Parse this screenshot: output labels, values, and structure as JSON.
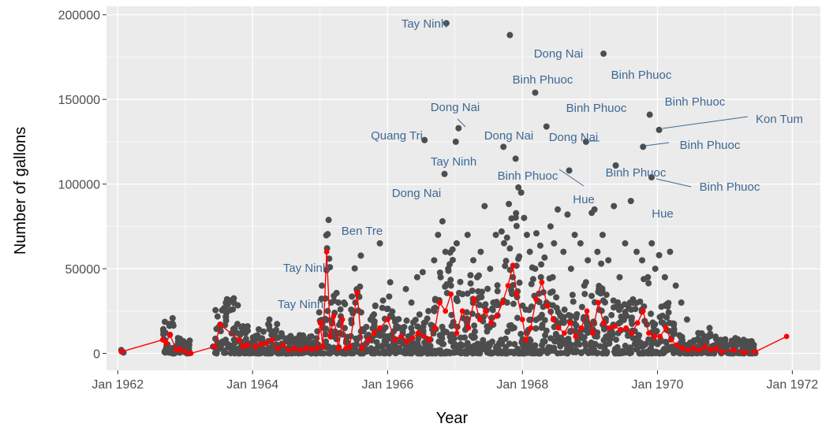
{
  "chart_data": {
    "type": "scatter",
    "title": "",
    "xlabel": "Year",
    "ylabel": "Number of gallons",
    "xlim": [
      "1961-11-01",
      "1972-06-01"
    ],
    "ylim": [
      -10000,
      205000
    ],
    "grid": true,
    "legend": "none",
    "x_ticks": [
      {
        "date": "1962-01-01",
        "label": "Jan 1962"
      },
      {
        "date": "1964-01-01",
        "label": "Jan 1964"
      },
      {
        "date": "1966-01-01",
        "label": "Jan 1966"
      },
      {
        "date": "1968-01-01",
        "label": "Jan 1968"
      },
      {
        "date": "1970-01-01",
        "label": "Jan 1970"
      },
      {
        "date": "1972-01-01",
        "label": "Jan 1972"
      }
    ],
    "y_ticks": [
      {
        "value": 0,
        "label": "0"
      },
      {
        "value": 50000,
        "label": "50000"
      },
      {
        "value": 100000,
        "label": "100000"
      },
      {
        "value": 150000,
        "label": "150000"
      },
      {
        "value": 200000,
        "label": "200000"
      }
    ],
    "colors": {
      "points": "#4d4d4d",
      "line": "#ff0000",
      "labels": "#3e6994",
      "panel": "#ebebeb",
      "grid": "#ffffff"
    },
    "series": [
      {
        "kind": "scatter",
        "points": [
          [
            "1962-01-20",
            2000
          ],
          [
            "1962-02-01",
            500
          ],
          [
            "1962-09-05",
            13000
          ],
          [
            "1962-09-20",
            3000
          ],
          [
            "1962-10-10",
            11000
          ],
          [
            "1962-11-01",
            2000
          ],
          [
            "1962-11-20",
            1000
          ],
          [
            "1963-01-10",
            1000
          ],
          [
            "1963-06-01",
            4000
          ],
          [
            "1963-07-10",
            17000
          ],
          [
            "1963-10-10",
            12000
          ],
          [
            "1963-10-25",
            7000
          ],
          [
            "1963-11-10",
            16000
          ],
          [
            "1963-12-05",
            16000
          ],
          [
            "1963-12-20",
            5000
          ],
          [
            "1964-04-01",
            20000
          ],
          [
            "1964-05-01",
            12000
          ],
          [
            "1964-06-10",
            10000
          ],
          [
            "1964-08-01",
            7000
          ],
          [
            "1964-10-01",
            10000
          ],
          [
            "1964-11-20",
            6000
          ],
          [
            "1964-12-10",
            5000
          ],
          [
            "1965-01-10",
            40000
          ],
          [
            "1965-01-20",
            15000
          ],
          [
            "1965-02-10",
            25000
          ],
          [
            "1965-03-01",
            30000
          ],
          [
            "1965-03-20",
            24000
          ],
          [
            "1965-04-10",
            30000
          ],
          [
            "1965-05-10",
            30000
          ],
          [
            "1965-07-10",
            30000
          ],
          [
            "1965-08-10",
            13000
          ],
          [
            "1965-09-10",
            10000
          ],
          [
            "1965-10-01",
            20000
          ],
          [
            "1965-10-20",
            18000
          ],
          [
            "1965-11-10",
            13000
          ],
          [
            "1965-12-10",
            14000
          ],
          [
            "1965-11-20",
            65000
          ],
          [
            "1966-01-15",
            42000
          ],
          [
            "1966-02-10",
            20000
          ],
          [
            "1966-03-10",
            15000
          ],
          [
            "1966-04-10",
            38000
          ],
          [
            "1966-05-10",
            30000
          ],
          [
            "1966-06-10",
            45000
          ],
          [
            "1966-07-10",
            48000
          ],
          [
            "1966-08-10",
            25000
          ],
          [
            "1966-09-10",
            55000
          ],
          [
            "1966-10-01",
            70000
          ],
          [
            "1966-10-15",
            45000
          ],
          [
            "1966-10-25",
            78000
          ],
          [
            "1966-11-10",
            60000
          ],
          [
            "1966-11-25",
            50000
          ],
          [
            "1966-12-10",
            40000
          ],
          [
            "1967-01-10",
            65000
          ],
          [
            "1967-02-10",
            35000
          ],
          [
            "1967-03-10",
            70000
          ],
          [
            "1967-04-10",
            55000
          ],
          [
            "1967-05-01",
            45000
          ],
          [
            "1967-05-20",
            60000
          ],
          [
            "1967-06-10",
            87000
          ],
          [
            "1967-07-10",
            50000
          ],
          [
            "1967-08-10",
            70000
          ],
          [
            "1967-09-10",
            72000
          ],
          [
            "1967-10-10",
            30000
          ],
          [
            "1967-10-25",
            62000
          ],
          [
            "1967-11-10",
            45000
          ],
          [
            "1967-12-10",
            98000
          ],
          [
            "1967-12-25",
            95000
          ],
          [
            "1968-01-10",
            80000
          ],
          [
            "1968-01-25",
            70000
          ],
          [
            "1968-02-10",
            60000
          ],
          [
            "1968-03-10",
            50000
          ],
          [
            "1968-04-10",
            45000
          ],
          [
            "1968-05-10",
            30000
          ],
          [
            "1968-06-01",
            75000
          ],
          [
            "1968-06-20",
            65000
          ],
          [
            "1968-07-10",
            85000
          ],
          [
            "1968-08-10",
            60000
          ],
          [
            "1968-09-01",
            82000
          ],
          [
            "1968-09-20",
            50000
          ],
          [
            "1968-10-10",
            70000
          ],
          [
            "1968-11-10",
            65000
          ],
          [
            "1968-12-01",
            40000
          ],
          [
            "1968-12-20",
            55000
          ],
          [
            "1969-01-10",
            83000
          ],
          [
            "1969-01-25",
            85000
          ],
          [
            "1969-02-10",
            60000
          ],
          [
            "1969-03-10",
            70000
          ],
          [
            "1969-04-10",
            55000
          ],
          [
            "1969-05-10",
            87000
          ],
          [
            "1969-06-10",
            45000
          ],
          [
            "1969-07-10",
            65000
          ],
          [
            "1969-08-10",
            90000
          ],
          [
            "1969-09-10",
            60000
          ],
          [
            "1969-10-10",
            55000
          ],
          [
            "1969-11-10",
            45000
          ],
          [
            "1969-12-01",
            65000
          ],
          [
            "1969-12-20",
            50000
          ],
          [
            "1970-01-10",
            58000
          ],
          [
            "1970-02-10",
            45000
          ],
          [
            "1970-03-10",
            60000
          ],
          [
            "1970-04-10",
            40000
          ],
          [
            "1970-05-10",
            30000
          ],
          [
            "1970-06-10",
            20000
          ],
          [
            "1970-08-10",
            12000
          ],
          [
            "1970-10-10",
            15000
          ],
          [
            "1970-12-10",
            8000
          ],
          [
            "1971-02-10",
            5000
          ],
          [
            "1971-04-10",
            3000
          ],
          [
            "1966-11-15",
            195000
          ],
          [
            "1967-10-25",
            188000
          ],
          [
            "1969-03-15",
            177000
          ],
          [
            "1968-03-10",
            154000
          ],
          [
            "1969-11-20",
            141000
          ],
          [
            "1968-05-10",
            134000
          ],
          [
            "1967-01-20",
            133000
          ],
          [
            "1970-01-10",
            132000
          ],
          [
            "1966-07-20",
            126000
          ],
          [
            "1967-01-05",
            125000
          ],
          [
            "1968-12-10",
            125000
          ],
          [
            "1967-09-20",
            122000
          ],
          [
            "1969-10-15",
            122000
          ],
          [
            "1967-11-25",
            115000
          ],
          [
            "1969-05-20",
            111000
          ],
          [
            "1968-09-10",
            108000
          ],
          [
            "1966-11-05",
            106000
          ],
          [
            "1969-11-30",
            104000
          ]
        ],
        "labels": [
          {
            "x": "1966-11-15",
            "y": 195000,
            "text": "Tay Ninh"
          },
          {
            "x": "1969-03-15",
            "y": 177000,
            "text": "Dong Nai"
          },
          {
            "x": "1968-03-10",
            "y": 154000,
            "text": "Binh Phuoc"
          },
          {
            "x": "1969-03-15",
            "y": 164000,
            "text": "Binh Phuoc"
          },
          {
            "x": "1967-01-20",
            "y": 133000,
            "text": "Dong Nai"
          },
          {
            "x": "1968-05-10",
            "y": 134000,
            "text": "Binh Phuoc"
          },
          {
            "x": "1969-11-20",
            "y": 141000,
            "text": "Binh Phuoc"
          },
          {
            "x": "1970-01-10",
            "y": 132000,
            "text": "Kon Tum"
          },
          {
            "x": "1966-07-20",
            "y": 126000,
            "text": "Quang Tri"
          },
          {
            "x": "1967-09-20",
            "y": 122000,
            "text": "Dong Nai"
          },
          {
            "x": "1968-12-10",
            "y": 125000,
            "text": "Dong Nai"
          },
          {
            "x": "1969-10-15",
            "y": 122000,
            "text": "Binh Phuoc"
          },
          {
            "x": "1966-11-05",
            "y": 106000,
            "text": "Tay Ninh"
          },
          {
            "x": "1968-09-10",
            "y": 108000,
            "text": "Binh Phuoc"
          },
          {
            "x": "1969-05-20",
            "y": 111000,
            "text": "Binh Phuoc"
          },
          {
            "x": "1969-11-30",
            "y": 104000,
            "text": "Binh Phuoc"
          },
          {
            "x": "1966-11-05",
            "y": 95000,
            "text": "Dong Nai"
          },
          {
            "x": "1968-09-20",
            "y": 92000,
            "text": "Hue"
          },
          {
            "x": "1969-08-10",
            "y": 83000,
            "text": "Hue"
          },
          {
            "x": "1965-11-20",
            "y": 65000,
            "text": "Ben Tre"
          },
          {
            "x": "1965-02-01",
            "y": 52000,
            "text": "Tay Ninh"
          },
          {
            "x": "1964-04-01",
            "y": 30000,
            "text": "Tay Ninh"
          }
        ]
      },
      {
        "kind": "line",
        "points": [
          [
            "1962-01-20",
            1000
          ],
          [
            "1962-09-01",
            8000
          ],
          [
            "1962-09-20",
            6000
          ],
          [
            "1962-10-10",
            11000
          ],
          [
            "1962-11-15",
            2000
          ],
          [
            "1962-12-01",
            2500
          ],
          [
            "1963-01-01",
            1000
          ],
          [
            "1963-02-01",
            0
          ],
          [
            "1963-06-10",
            4000
          ],
          [
            "1963-07-10",
            17000
          ],
          [
            "1963-10-20",
            8000
          ],
          [
            "1963-11-10",
            4000
          ],
          [
            "1963-12-01",
            5000
          ],
          [
            "1964-01-15",
            4000
          ],
          [
            "1964-02-15",
            5500
          ],
          [
            "1964-03-15",
            6000
          ],
          [
            "1964-04-15",
            8000
          ],
          [
            "1964-05-15",
            3000
          ],
          [
            "1964-06-15",
            5000
          ],
          [
            "1964-07-15",
            2000
          ],
          [
            "1964-08-15",
            3000
          ],
          [
            "1964-09-15",
            2000
          ],
          [
            "1964-10-15",
            3000
          ],
          [
            "1964-11-15",
            2500
          ],
          [
            "1964-12-15",
            3000
          ],
          [
            "1965-01-01",
            18000
          ],
          [
            "1965-01-15",
            4000
          ],
          [
            "1965-02-05",
            60000
          ],
          [
            "1965-02-25",
            10000
          ],
          [
            "1965-03-15",
            22000
          ],
          [
            "1965-04-10",
            3000
          ],
          [
            "1965-05-01",
            20000
          ],
          [
            "1965-05-20",
            3000
          ],
          [
            "1965-06-10",
            4000
          ],
          [
            "1965-07-20",
            36000
          ],
          [
            "1965-08-15",
            3000
          ],
          [
            "1965-09-20",
            8000
          ],
          [
            "1965-10-20",
            12000
          ],
          [
            "1965-11-20",
            15000
          ],
          [
            "1966-01-01",
            20000
          ],
          [
            "1966-02-10",
            8000
          ],
          [
            "1966-03-15",
            10000
          ],
          [
            "1966-04-15",
            7000
          ],
          [
            "1966-05-15",
            9000
          ],
          [
            "1966-06-15",
            12000
          ],
          [
            "1966-07-15",
            10000
          ],
          [
            "1966-08-15",
            8000
          ],
          [
            "1966-09-15",
            15000
          ],
          [
            "1966-10-10",
            30000
          ],
          [
            "1966-11-10",
            25000
          ],
          [
            "1966-12-10",
            35000
          ],
          [
            "1967-01-10",
            12000
          ],
          [
            "1967-02-10",
            25000
          ],
          [
            "1967-03-15",
            15000
          ],
          [
            "1967-04-15",
            32000
          ],
          [
            "1967-05-15",
            20000
          ],
          [
            "1967-06-15",
            25000
          ],
          [
            "1967-07-15",
            18000
          ],
          [
            "1967-08-15",
            22000
          ],
          [
            "1967-09-15",
            30000
          ],
          [
            "1967-10-15",
            40000
          ],
          [
            "1967-11-10",
            52000
          ],
          [
            "1967-12-01",
            35000
          ],
          [
            "1968-01-01",
            20000
          ],
          [
            "1968-01-20",
            8000
          ],
          [
            "1968-02-15",
            15000
          ],
          [
            "1968-03-15",
            32000
          ],
          [
            "1968-04-15",
            42000
          ],
          [
            "1968-05-15",
            28000
          ],
          [
            "1968-06-15",
            20000
          ],
          [
            "1968-07-15",
            15000
          ],
          [
            "1968-08-15",
            12000
          ],
          [
            "1968-09-15",
            18000
          ],
          [
            "1968-10-15",
            10000
          ],
          [
            "1968-11-15",
            15000
          ],
          [
            "1968-12-15",
            25000
          ],
          [
            "1969-01-15",
            12000
          ],
          [
            "1969-02-15",
            30000
          ],
          [
            "1969-03-15",
            18000
          ],
          [
            "1969-04-15",
            15000
          ],
          [
            "1969-05-15",
            16000
          ],
          [
            "1969-06-15",
            14000
          ],
          [
            "1969-07-15",
            15000
          ],
          [
            "1969-08-15",
            12000
          ],
          [
            "1969-09-15",
            18000
          ],
          [
            "1969-10-15",
            25000
          ],
          [
            "1969-11-15",
            12000
          ],
          [
            "1969-12-15",
            10000
          ],
          [
            "1970-01-15",
            10000
          ],
          [
            "1970-02-15",
            15000
          ],
          [
            "1970-03-15",
            8000
          ],
          [
            "1970-04-15",
            5000
          ],
          [
            "1970-05-15",
            3000
          ],
          [
            "1970-06-15",
            2000
          ],
          [
            "1970-07-15",
            3000
          ],
          [
            "1970-08-15",
            2000
          ],
          [
            "1970-09-15",
            4000
          ],
          [
            "1970-10-15",
            2000
          ],
          [
            "1970-11-15",
            3000
          ],
          [
            "1970-12-15",
            1000
          ],
          [
            "1971-02-15",
            2000
          ],
          [
            "1971-04-15",
            500
          ],
          [
            "1971-06-15",
            1000
          ],
          [
            "1971-12-01",
            10000
          ]
        ]
      }
    ]
  }
}
